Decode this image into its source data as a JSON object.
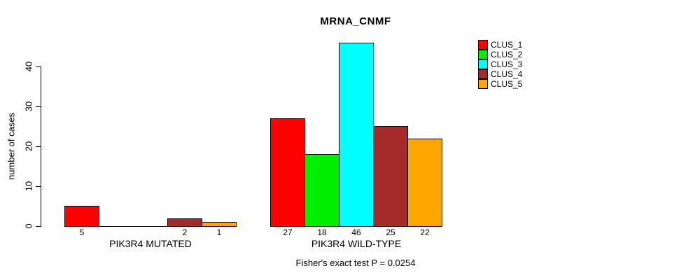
{
  "title": "MRNA_CNMF",
  "ylabel": "number of cases",
  "footer": "Fisher's exact test P = 0.0254",
  "chart_data": {
    "type": "bar",
    "title": "MRNA_CNMF",
    "xlabel": "",
    "ylabel": "number of cases",
    "categories": [
      "PIK3R4 MUTATED",
      "PIK3R4 WILD-TYPE"
    ],
    "series": [
      {
        "name": "CLUS_1",
        "color": "#FF0000",
        "values": [
          5,
          27
        ]
      },
      {
        "name": "CLUS_2",
        "color": "#00EE00",
        "values": [
          0,
          18
        ]
      },
      {
        "name": "CLUS_3",
        "color": "#00FFFF",
        "values": [
          0,
          46
        ]
      },
      {
        "name": "CLUS_4",
        "color": "#A52A2A",
        "values": [
          2,
          25
        ]
      },
      {
        "name": "CLUS_5",
        "color": "#FFA500",
        "values": [
          1,
          22
        ]
      }
    ],
    "yticks": [
      0,
      10,
      20,
      30,
      40
    ],
    "ylim": [
      0,
      46
    ],
    "grid": false,
    "legend_position": "top-right",
    "bar_value_labels": true,
    "show_zero_value_labels": false,
    "annotation": "Fisher's exact test P = 0.0254"
  }
}
